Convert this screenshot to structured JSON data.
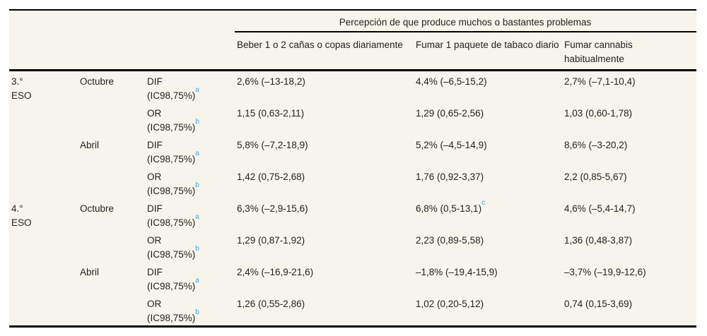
{
  "colors": {
    "page_background": "#ffffff",
    "table_background": "#f7f4ec",
    "rule_color": "#000000",
    "text_color": "#231f20",
    "superscript_color": "#42a5da"
  },
  "table": {
    "spanner": "Percepción de que produce muchos o bastantes problemas",
    "columns": [
      "Beber 1 o 2 cañas o copas diariamente",
      "Fumar 1 paquete de tabaco diario",
      "Fumar cannabis habitualmente"
    ],
    "rows": [
      {
        "grade": "3.° ESO",
        "month": "Octubre",
        "measure": "DIF",
        "ic": "(IC98,75%)",
        "sup": "a",
        "values": [
          "2,6% (–13-18,2)",
          "4,4% (–6,5-15,2)",
          "2,7% (–7,1-10,4)"
        ]
      },
      {
        "measure": "OR",
        "ic": "(IC98,75%)",
        "sup": "b",
        "values": [
          "1,15 (0,63-2,11)",
          "1,29 (0,65-2,56)",
          "1,03 (0,60-1,78)"
        ]
      },
      {
        "month": "Abril",
        "measure": "DIF",
        "ic": "(IC98,75%)",
        "sup": "a",
        "values": [
          "5,8% (–7,2-18,9)",
          "5,2% (–4,5-14,9)",
          "8,6% (–3-20,2)"
        ]
      },
      {
        "measure": "OR",
        "ic": "(IC98,75%)",
        "sup": "b",
        "values": [
          "1,42 (0,75-2,68)",
          "1,76 (0,92-3,37)",
          "2,2 (0,85-5,67)"
        ]
      },
      {
        "grade": "4.° ESO",
        "month": "Octubre",
        "measure": "DIF",
        "ic": "(IC98,75%)",
        "sup": "a",
        "values": [
          "6,3% (–2,9-15,6)",
          "6,8% (0,5-13,1)",
          "4,6% (–5,4-14,7)"
        ],
        "value_sup": "c"
      },
      {
        "measure": "OR",
        "ic": "(IC98,75%)",
        "sup": "b",
        "values": [
          "1,29 (0,87-1,92)",
          "2,23 (0,89-5,58)",
          "1,36 (0,48-3,87)"
        ]
      },
      {
        "month": "Abril",
        "measure": "DIF",
        "ic": "(IC98,75%)",
        "sup": "a",
        "values": [
          "2,4% (–16,9-21,6)",
          "–1,8% (–19,4-15,9)",
          "–3,7% (–19,9-12,6)"
        ]
      },
      {
        "measure": "OR",
        "ic": "(IC98,75%)",
        "sup": "b",
        "values": [
          "1,26 (0,55-2,86)",
          "1,02 (0,20-5,12)",
          "0,74 (0,15-3,69)"
        ]
      }
    ]
  }
}
